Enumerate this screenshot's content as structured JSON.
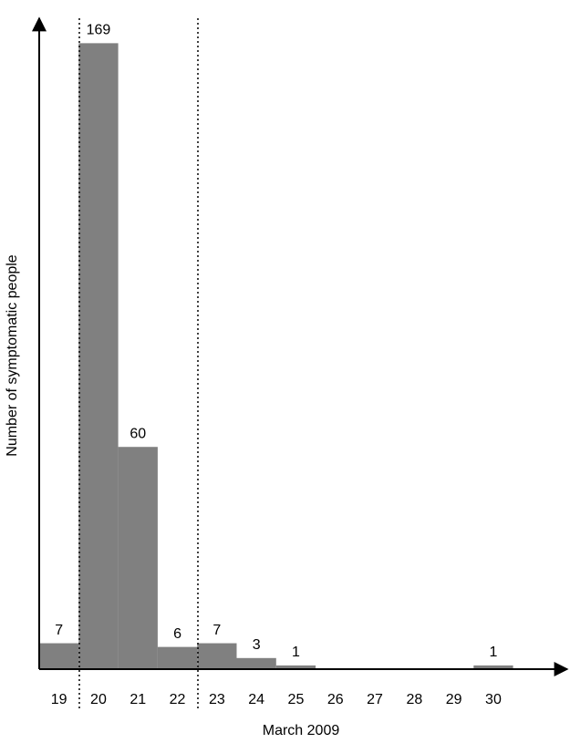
{
  "chart_data": {
    "type": "bar",
    "x_label": "March 2009",
    "y_label": "Number of symptomatic people",
    "categories": [
      "19",
      "20",
      "21",
      "22",
      "23",
      "24",
      "25",
      "26",
      "27",
      "28",
      "29",
      "30"
    ],
    "values": [
      7,
      169,
      60,
      6,
      7,
      3,
      1,
      0,
      0,
      0,
      0,
      1
    ],
    "color": "#808080",
    "ylim": [
      0,
      175
    ],
    "grid": false
  }
}
